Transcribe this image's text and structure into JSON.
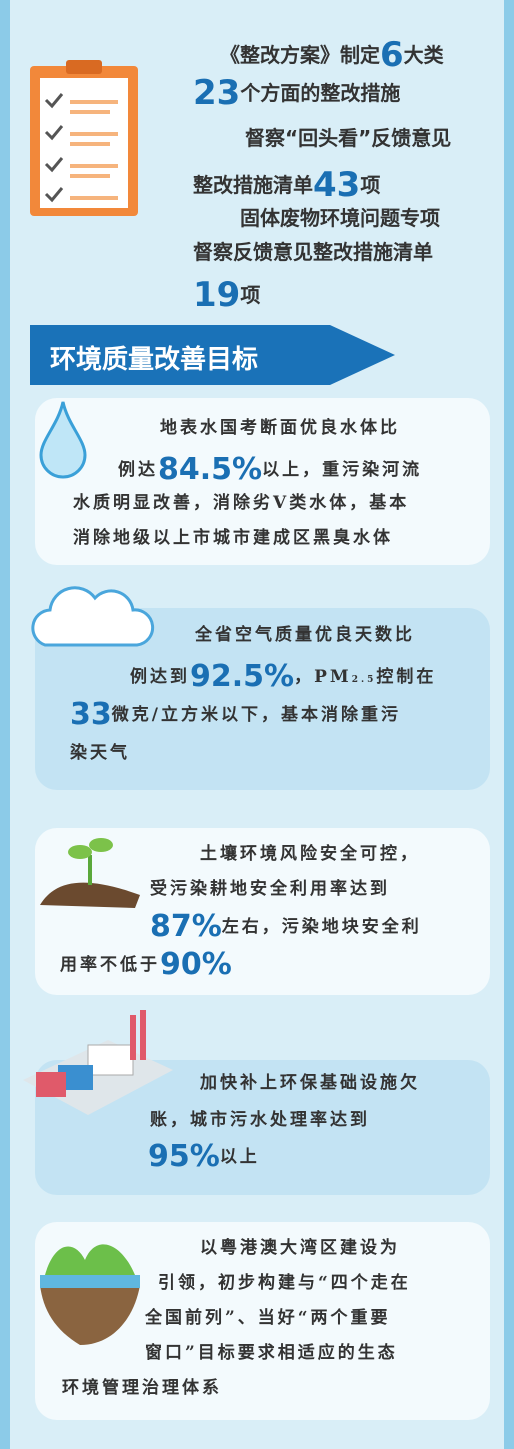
{
  "header": {
    "lines": [
      [
        {
          "text": "《整改方案》制定"
        },
        {
          "text": "6",
          "big": true
        },
        {
          "text": "大类"
        }
      ],
      [
        {
          "text": "23",
          "big": true
        },
        {
          "text": "个方面的整改措施"
        }
      ],
      [
        {
          "text": "督察“回头看”反馈意见"
        }
      ],
      [
        {
          "text": "整改措施清单"
        },
        {
          "text": "43",
          "big": true
        },
        {
          "text": "项"
        }
      ],
      [
        {
          "text": "固体废物环境问题专项"
        }
      ],
      [
        {
          "text": "督察反馈意见整改措施清单"
        }
      ],
      [
        {
          "text": "19",
          "big": true
        },
        {
          "text": "项"
        }
      ]
    ]
  },
  "section": {
    "title": "环境质量改善目标"
  },
  "cards": [
    {
      "lines": [
        [
          {
            "text": "地表水国考断面优良水体比"
          }
        ],
        [
          {
            "text": "例达"
          },
          {
            "text": "84.5%",
            "big": true
          },
          {
            "text": "以上，重污染河流"
          }
        ],
        [
          {
            "text": "水质明显改善，消除劣V类水体，基本"
          }
        ],
        [
          {
            "text": "消除地级以上市城市建成区黑臭水体"
          }
        ]
      ]
    },
    {
      "lines": [
        [
          {
            "text": "全省空气质量优良天数比"
          }
        ],
        [
          {
            "text": "例达到"
          },
          {
            "text": "92.5%",
            "big": true
          },
          {
            "text": "，PM"
          },
          {
            "text": "2.5",
            "sub": true
          },
          {
            "text": "控制在"
          }
        ],
        [
          {
            "text": "33",
            "big": true
          },
          {
            "text": "微克/立方米以下，基本消除重污"
          }
        ],
        [
          {
            "text": "染天气"
          }
        ]
      ]
    },
    {
      "lines": [
        [
          {
            "text": "土壤环境风险安全可控，"
          }
        ],
        [
          {
            "text": "受污染耕地安全利用率达到"
          }
        ],
        [
          {
            "text": "87%",
            "big": true
          },
          {
            "text": "左右，污染地块安全利"
          }
        ],
        [
          {
            "text": "用率不低于"
          },
          {
            "text": "90%",
            "big": true
          }
        ]
      ]
    },
    {
      "lines": [
        [
          {
            "text": "加快补上环保基础设施欠"
          }
        ],
        [
          {
            "text": "账，城市污水处理率达到"
          }
        ],
        [
          {
            "text": "95%",
            "big": true
          },
          {
            "text": "以上"
          }
        ]
      ]
    },
    {
      "lines": [
        [
          {
            "text": "以粤港澳大湾区建设为"
          }
        ],
        [
          {
            "text": "引领，初步构建与“四个走在"
          }
        ],
        [
          {
            "text": "全国前列”、当好“两个重要"
          }
        ],
        [
          {
            "text": "窗口”目标要求相适应的生态"
          }
        ],
        [
          {
            "text": "环境管理治理体系"
          }
        ]
      ]
    }
  ]
}
